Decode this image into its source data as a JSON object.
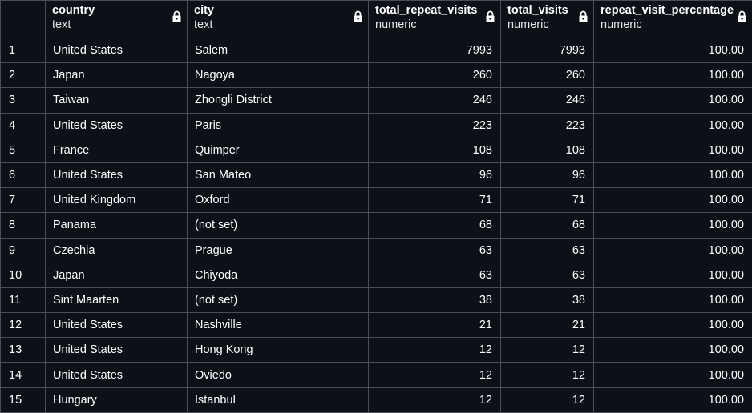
{
  "columns": [
    {
      "name": "country",
      "type": "text",
      "lock_icon": "lock-icon"
    },
    {
      "name": "city",
      "type": "text",
      "lock_icon": "lock-icon"
    },
    {
      "name": "total_repeat_visits",
      "type": "numeric",
      "lock_icon": "lock-icon"
    },
    {
      "name": "total_visits",
      "type": "numeric",
      "lock_icon": "lock-icon"
    },
    {
      "name": "repeat_visit_percentage",
      "type": "numeric",
      "lock_icon": "lock-icon"
    }
  ],
  "rows": [
    {
      "num": "1",
      "country": "United States",
      "city": "Salem",
      "total_repeat_visits": "7993",
      "total_visits": "7993",
      "repeat_visit_percentage": "100.00"
    },
    {
      "num": "2",
      "country": "Japan",
      "city": "Nagoya",
      "total_repeat_visits": "260",
      "total_visits": "260",
      "repeat_visit_percentage": "100.00"
    },
    {
      "num": "3",
      "country": "Taiwan",
      "city": "Zhongli District",
      "total_repeat_visits": "246",
      "total_visits": "246",
      "repeat_visit_percentage": "100.00"
    },
    {
      "num": "4",
      "country": "United States",
      "city": "Paris",
      "total_repeat_visits": "223",
      "total_visits": "223",
      "repeat_visit_percentage": "100.00"
    },
    {
      "num": "5",
      "country": "France",
      "city": "Quimper",
      "total_repeat_visits": "108",
      "total_visits": "108",
      "repeat_visit_percentage": "100.00"
    },
    {
      "num": "6",
      "country": "United States",
      "city": "San Mateo",
      "total_repeat_visits": "96",
      "total_visits": "96",
      "repeat_visit_percentage": "100.00"
    },
    {
      "num": "7",
      "country": "United Kingdom",
      "city": "Oxford",
      "total_repeat_visits": "71",
      "total_visits": "71",
      "repeat_visit_percentage": "100.00"
    },
    {
      "num": "8",
      "country": "Panama",
      "city": "(not set)",
      "total_repeat_visits": "68",
      "total_visits": "68",
      "repeat_visit_percentage": "100.00"
    },
    {
      "num": "9",
      "country": "Czechia",
      "city": "Prague",
      "total_repeat_visits": "63",
      "total_visits": "63",
      "repeat_visit_percentage": "100.00"
    },
    {
      "num": "10",
      "country": "Japan",
      "city": "Chiyoda",
      "total_repeat_visits": "63",
      "total_visits": "63",
      "repeat_visit_percentage": "100.00"
    },
    {
      "num": "11",
      "country": "Sint Maarten",
      "city": "(not set)",
      "total_repeat_visits": "38",
      "total_visits": "38",
      "repeat_visit_percentage": "100.00"
    },
    {
      "num": "12",
      "country": "United States",
      "city": "Nashville",
      "total_repeat_visits": "21",
      "total_visits": "21",
      "repeat_visit_percentage": "100.00"
    },
    {
      "num": "13",
      "country": "United States",
      "city": "Hong Kong",
      "total_repeat_visits": "12",
      "total_visits": "12",
      "repeat_visit_percentage": "100.00"
    },
    {
      "num": "14",
      "country": "United States",
      "city": "Oviedo",
      "total_repeat_visits": "12",
      "total_visits": "12",
      "repeat_visit_percentage": "100.00"
    },
    {
      "num": "15",
      "country": "Hungary",
      "city": "Istanbul",
      "total_repeat_visits": "12",
      "total_visits": "12",
      "repeat_visit_percentage": "100.00"
    }
  ],
  "colors": {
    "background": "#0d1117",
    "border": "#4a4f57",
    "text": "#ffffff"
  }
}
